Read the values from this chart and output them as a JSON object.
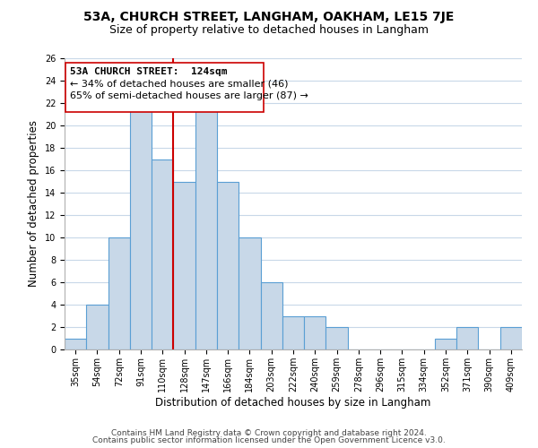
{
  "title": "53A, CHURCH STREET, LANGHAM, OAKHAM, LE15 7JE",
  "subtitle": "Size of property relative to detached houses in Langham",
  "xlabel": "Distribution of detached houses by size in Langham",
  "ylabel": "Number of detached properties",
  "bar_labels": [
    "35sqm",
    "54sqm",
    "72sqm",
    "91sqm",
    "110sqm",
    "128sqm",
    "147sqm",
    "166sqm",
    "184sqm",
    "203sqm",
    "222sqm",
    "240sqm",
    "259sqm",
    "278sqm",
    "296sqm",
    "315sqm",
    "334sqm",
    "352sqm",
    "371sqm",
    "390sqm",
    "409sqm"
  ],
  "bar_values": [
    1,
    4,
    10,
    22,
    17,
    15,
    22,
    15,
    10,
    6,
    3,
    3,
    2,
    0,
    0,
    0,
    0,
    1,
    2,
    0,
    2
  ],
  "bar_color": "#c8d8e8",
  "bar_edge_color": "#5a9fd4",
  "highlight_line_color": "#cc0000",
  "highlight_line_index": 5,
  "ann_line1": "53A CHURCH STREET:  124sqm",
  "ann_line2": "← 34% of detached houses are smaller (46)",
  "ann_line3": "65% of semi-detached houses are larger (87) →",
  "ylim": [
    0,
    26
  ],
  "yticks": [
    0,
    2,
    4,
    6,
    8,
    10,
    12,
    14,
    16,
    18,
    20,
    22,
    24,
    26
  ],
  "footer_line1": "Contains HM Land Registry data © Crown copyright and database right 2024.",
  "footer_line2": "Contains public sector information licensed under the Open Government Licence v3.0.",
  "bg_color": "#ffffff",
  "grid_color": "#c8d8e8",
  "title_fontsize": 10,
  "subtitle_fontsize": 9,
  "axis_label_fontsize": 8.5,
  "tick_fontsize": 7,
  "ann_fontsize": 8,
  "footer_fontsize": 6.5
}
